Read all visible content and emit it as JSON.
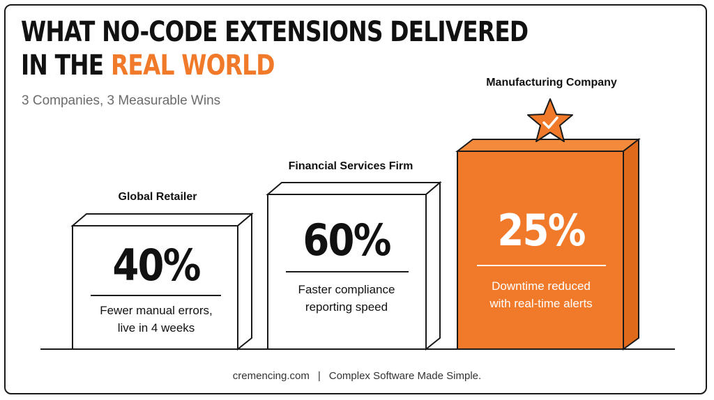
{
  "header": {
    "title_line1": "WHAT NO-CODE EXTENSIONS DELIVERED",
    "title_line2_plain": "IN THE ",
    "title_line2_accent": "REAL WORLD",
    "subtitle": "3 Companies, 3 Measurable Wins"
  },
  "colors": {
    "accent": "#f07a2a",
    "ink": "#111111",
    "muted": "#6b6b6b"
  },
  "cases": [
    {
      "company": "Global Retailer",
      "value": "40%",
      "desc_line1": "Fewer manual errors,",
      "desc_line2": "live in 4 weeks"
    },
    {
      "company": "Financial Services Firm",
      "value": "60%",
      "desc_line1": "Faster compliance",
      "desc_line2": "reporting speed"
    },
    {
      "company": "Manufacturing Company",
      "value": "25%",
      "desc_line1": "Downtime reduced",
      "desc_line2": "with real-time alerts",
      "highlight_icon": "star-check-icon"
    }
  ],
  "footer": {
    "site": "cremencing.com",
    "separator": "|",
    "tagline": "Complex Software Made Simple."
  }
}
